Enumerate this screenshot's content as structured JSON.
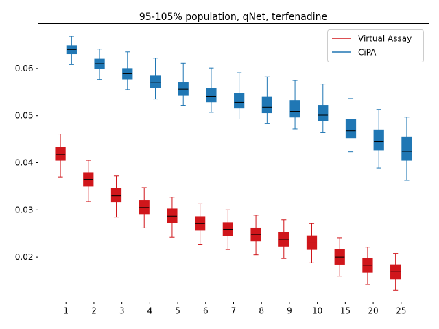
{
  "chart_data": {
    "type": "box",
    "title": "95-105% population, qNet, terfenadine",
    "xlabel": "",
    "ylabel": "",
    "categories": [
      "1",
      "2",
      "3",
      "4",
      "5",
      "6",
      "7",
      "8",
      "9",
      "10",
      "15",
      "20",
      "25"
    ],
    "ylim": [
      0.0105,
      0.0695
    ],
    "yticks": [
      0.02,
      0.03,
      0.04,
      0.05,
      0.06
    ],
    "ytick_labels": [
      "0.02",
      "0.03",
      "0.04",
      "0.05",
      "0.06"
    ],
    "grid": false,
    "legend_position": "upper right",
    "series": [
      {
        "name": "Virtual Assay",
        "color": "#d0161b",
        "median_color": "#000000",
        "offset": -0.2,
        "boxes": [
          {
            "whislo": 0.037,
            "q1": 0.0405,
            "med": 0.0418,
            "q3": 0.0433,
            "whishi": 0.0461
          },
          {
            "whislo": 0.0318,
            "q1": 0.035,
            "med": 0.0365,
            "q3": 0.0379,
            "whishi": 0.0405
          },
          {
            "whislo": 0.0285,
            "q1": 0.0317,
            "med": 0.033,
            "q3": 0.0345,
            "whishi": 0.0372
          },
          {
            "whislo": 0.0262,
            "q1": 0.0292,
            "med": 0.0305,
            "q3": 0.032,
            "whishi": 0.0347
          },
          {
            "whislo": 0.0242,
            "q1": 0.0273,
            "med": 0.0287,
            "q3": 0.0302,
            "whishi": 0.0327
          },
          {
            "whislo": 0.0227,
            "q1": 0.0257,
            "med": 0.0271,
            "q3": 0.0286,
            "whishi": 0.0313
          },
          {
            "whislo": 0.0216,
            "q1": 0.0245,
            "med": 0.0259,
            "q3": 0.0273,
            "whishi": 0.03
          },
          {
            "whislo": 0.0205,
            "q1": 0.0234,
            "med": 0.0248,
            "q3": 0.0262,
            "whishi": 0.0289
          },
          {
            "whislo": 0.0197,
            "q1": 0.0223,
            "med": 0.0238,
            "q3": 0.0253,
            "whishi": 0.0279
          },
          {
            "whislo": 0.0188,
            "q1": 0.0216,
            "med": 0.023,
            "q3": 0.0245,
            "whishi": 0.0271
          },
          {
            "whislo": 0.016,
            "q1": 0.0185,
            "med": 0.02,
            "q3": 0.0216,
            "whishi": 0.0241
          },
          {
            "whislo": 0.0142,
            "q1": 0.0168,
            "med": 0.0183,
            "q3": 0.0198,
            "whishi": 0.0221
          },
          {
            "whislo": 0.013,
            "q1": 0.0154,
            "med": 0.017,
            "q3": 0.0184,
            "whishi": 0.0208
          }
        ]
      },
      {
        "name": "CiPA",
        "color": "#2077b4",
        "median_color": "#000000",
        "offset": 0.2,
        "boxes": [
          {
            "whislo": 0.0608,
            "q1": 0.0631,
            "med": 0.064,
            "q3": 0.0648,
            "whishi": 0.0668
          },
          {
            "whislo": 0.0577,
            "q1": 0.06,
            "med": 0.061,
            "q3": 0.062,
            "whishi": 0.0641
          },
          {
            "whislo": 0.0555,
            "q1": 0.0578,
            "med": 0.0589,
            "q3": 0.06,
            "whishi": 0.0635
          },
          {
            "whislo": 0.0535,
            "q1": 0.0559,
            "med": 0.0571,
            "q3": 0.0584,
            "whishi": 0.0622
          },
          {
            "whislo": 0.0522,
            "q1": 0.0543,
            "med": 0.0556,
            "q3": 0.057,
            "whishi": 0.0611
          },
          {
            "whislo": 0.0507,
            "q1": 0.0529,
            "med": 0.0541,
            "q3": 0.0557,
            "whishi": 0.0601
          },
          {
            "whislo": 0.0493,
            "q1": 0.0516,
            "med": 0.0528,
            "q3": 0.0548,
            "whishi": 0.0591
          },
          {
            "whislo": 0.0483,
            "q1": 0.0506,
            "med": 0.0518,
            "q3": 0.054,
            "whishi": 0.0582
          },
          {
            "whislo": 0.0472,
            "q1": 0.0497,
            "med": 0.0509,
            "q3": 0.0532,
            "whishi": 0.0575
          },
          {
            "whislo": 0.0464,
            "q1": 0.0489,
            "med": 0.0501,
            "q3": 0.0522,
            "whishi": 0.0567
          },
          {
            "whislo": 0.0423,
            "q1": 0.0452,
            "med": 0.0468,
            "q3": 0.0493,
            "whishi": 0.0536
          },
          {
            "whislo": 0.0389,
            "q1": 0.0427,
            "med": 0.0445,
            "q3": 0.047,
            "whishi": 0.0513
          },
          {
            "whislo": 0.0363,
            "q1": 0.0405,
            "med": 0.0424,
            "q3": 0.0454,
            "whishi": 0.0497
          }
        ]
      }
    ]
  }
}
